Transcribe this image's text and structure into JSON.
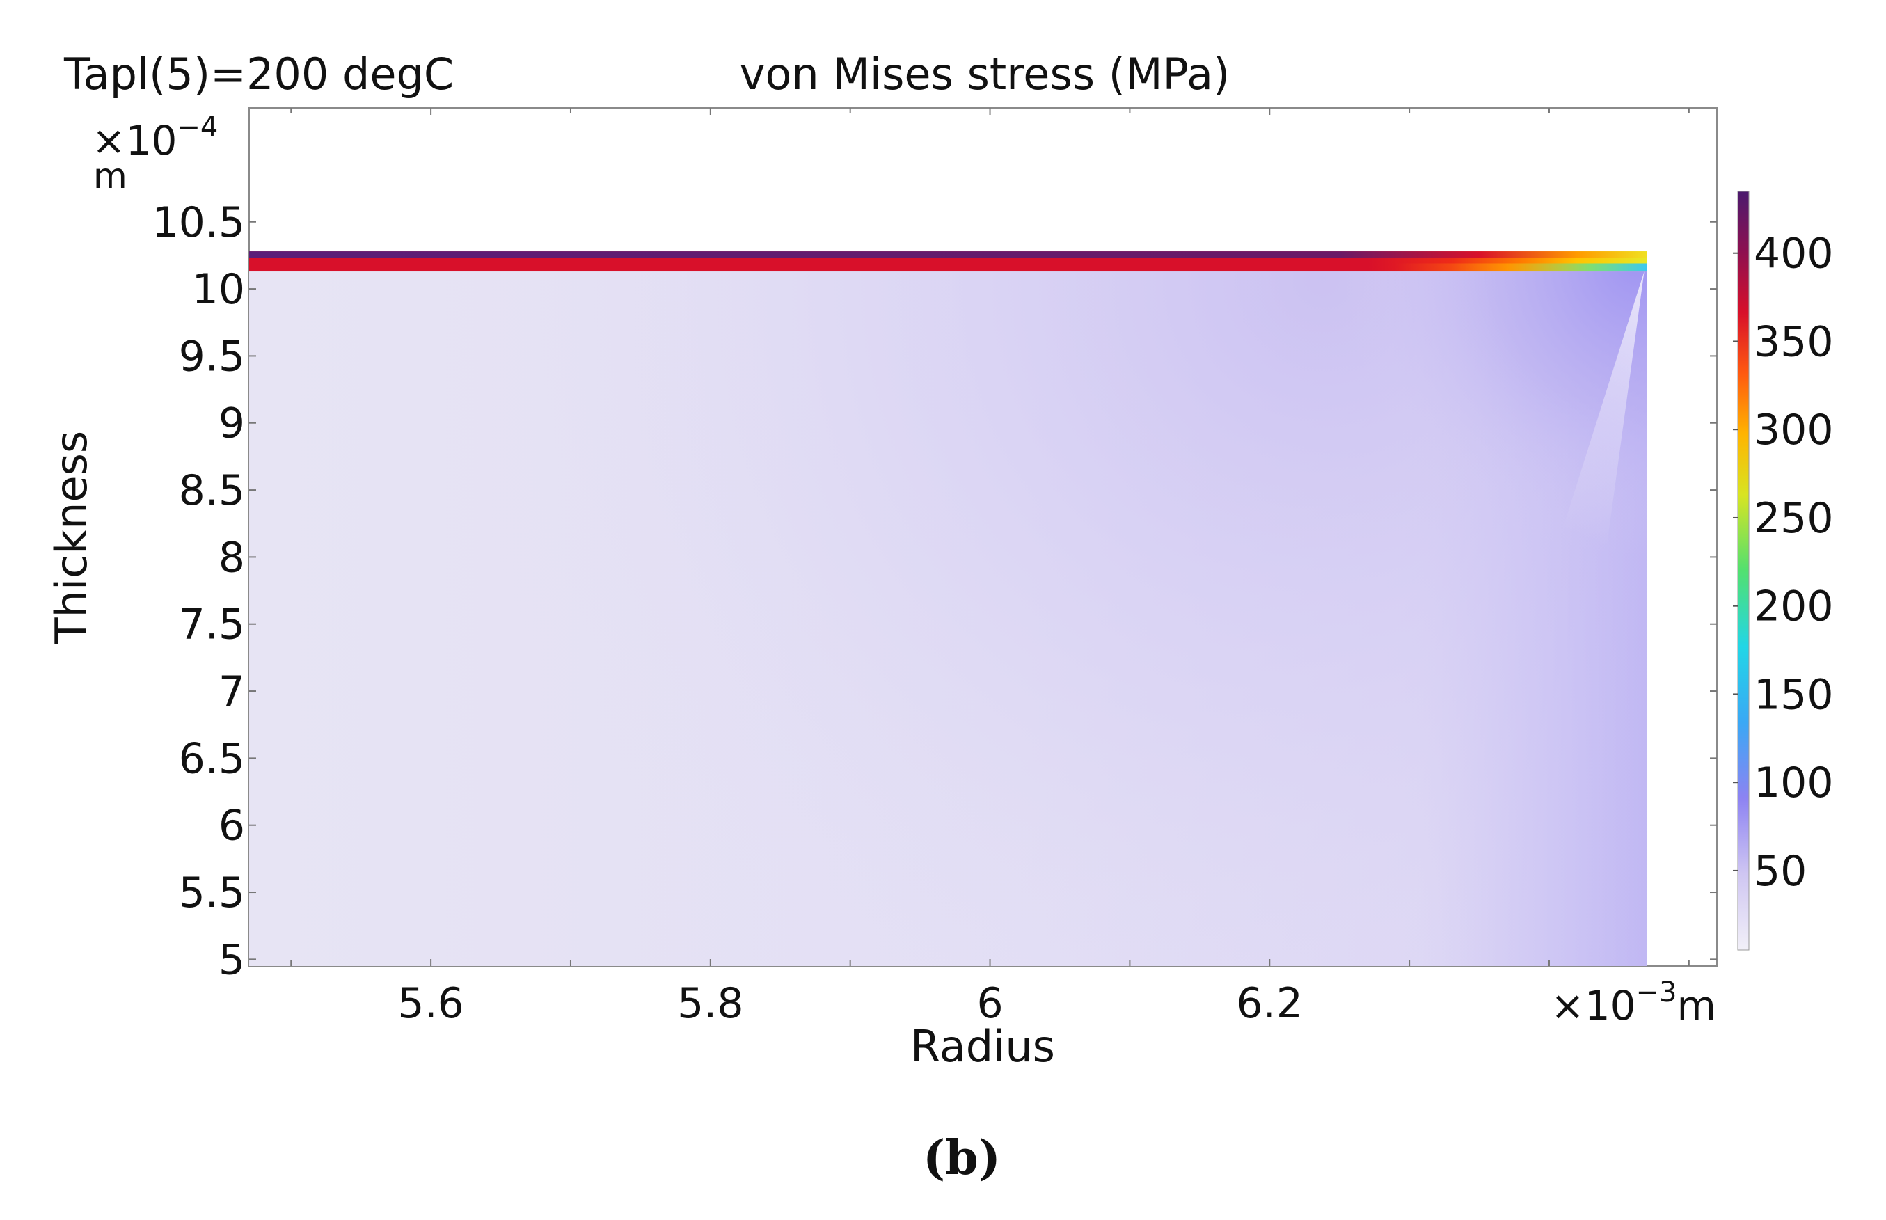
{
  "chart_data": {
    "type": "heatmap",
    "title": "von Mises stress (MPa)",
    "parameter_label": "Tapl(5)=200 degC",
    "xlabel": "Radius",
    "ylabel": "Thickness",
    "x_multiplier": "×10",
    "x_exponent": "−3",
    "x_unit": "m",
    "y_multiplier": "×10",
    "y_exponent": "−4",
    "y_unit": "m",
    "x_tick_labels": [
      "5.6",
      "5.8",
      "6",
      "6.2"
    ],
    "x_ticks": [
      5.6,
      5.8,
      6.0,
      6.2
    ],
    "xlim": [
      5.47,
      6.52
    ],
    "y_tick_labels": [
      "5",
      "5.5",
      "6",
      "6.5",
      "7",
      "7.5",
      "8",
      "8.5",
      "9",
      "9.5",
      "10",
      "10.5"
    ],
    "y_ticks": [
      5,
      5.5,
      6,
      6.5,
      7,
      7.5,
      8,
      8.5,
      9,
      9.5,
      10,
      10.5
    ],
    "ylim": [
      4.95,
      11.35
    ],
    "grid": false,
    "domain": {
      "r_min": 5.47,
      "r_max": 6.47,
      "z_min": 4.95,
      "z_max": 10.28
    },
    "coating_layer": {
      "z_bottom": 10.13,
      "z_top": 10.28,
      "stress_range_MPa": [
        200,
        430
      ]
    },
    "substrate_stress_range_MPa": [
      5,
      90
    ],
    "colorbar": {
      "colormap": "Rainbow Light (white-purple-blue-cyan-green-yellow-orange-red-darkred-purple)",
      "placement": "right",
      "min": 5,
      "max": 435,
      "tick_labels": [
        "50",
        "100",
        "150",
        "200",
        "250",
        "300",
        "350",
        "400"
      ],
      "ticks": [
        50,
        100,
        150,
        200,
        250,
        300,
        350,
        400
      ]
    }
  },
  "caption": "(b)",
  "colors": {
    "background": "#ffffff",
    "axis": "#888888",
    "substrate_base": "#e6e3f4",
    "substrate_mid": "#d4ccf2",
    "substrate_edge": "#a89cf0",
    "layer_top": "#5b1e78",
    "layer_red": "#d8102a",
    "layer_orange": "#ff8a00",
    "layer_yellow": "#f0e020",
    "layer_green": "#6fe080",
    "layer_cyan": "#3cc8f0"
  }
}
